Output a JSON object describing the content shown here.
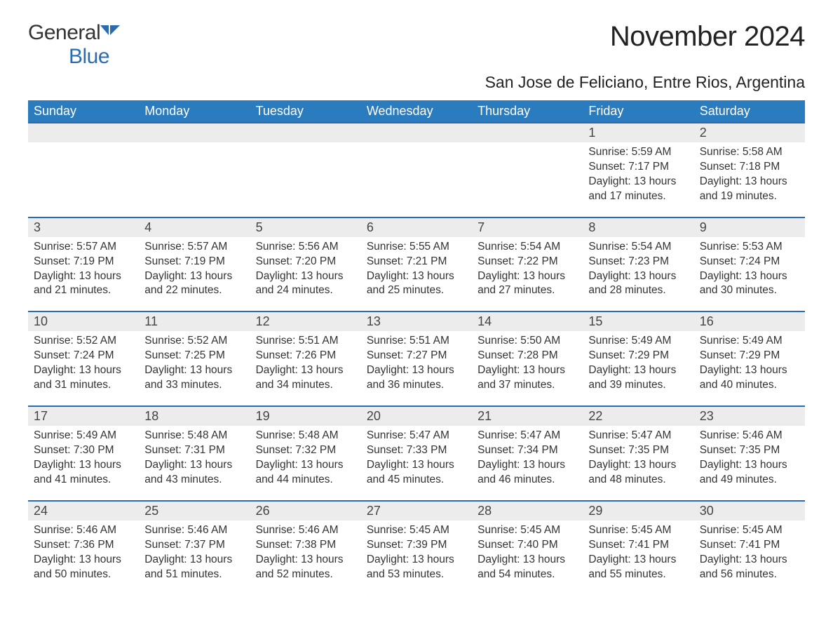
{
  "brand": {
    "word1": "General",
    "word2": "Blue",
    "accent_color": "#2b6cb0"
  },
  "title": "November 2024",
  "location": "San Jose de Feliciano, Entre Rios, Argentina",
  "header_bg": "#2b7bbf",
  "header_fg": "#ffffff",
  "daynum_bg": "#ececec",
  "rule_color": "#2b6cb0",
  "text_color": "#333333",
  "font_family": "Arial",
  "title_fontsize": 40,
  "location_fontsize": 23,
  "header_fontsize": 18,
  "daynum_fontsize": 18,
  "body_fontsize": 15.5,
  "weekdays": [
    "Sunday",
    "Monday",
    "Tuesday",
    "Wednesday",
    "Thursday",
    "Friday",
    "Saturday"
  ],
  "weeks": [
    [
      null,
      null,
      null,
      null,
      null,
      {
        "n": "1",
        "sunrise": "Sunrise: 5:59 AM",
        "sunset": "Sunset: 7:17 PM",
        "daylight": "Daylight: 13 hours and 17 minutes."
      },
      {
        "n": "2",
        "sunrise": "Sunrise: 5:58 AM",
        "sunset": "Sunset: 7:18 PM",
        "daylight": "Daylight: 13 hours and 19 minutes."
      }
    ],
    [
      {
        "n": "3",
        "sunrise": "Sunrise: 5:57 AM",
        "sunset": "Sunset: 7:19 PM",
        "daylight": "Daylight: 13 hours and 21 minutes."
      },
      {
        "n": "4",
        "sunrise": "Sunrise: 5:57 AM",
        "sunset": "Sunset: 7:19 PM",
        "daylight": "Daylight: 13 hours and 22 minutes."
      },
      {
        "n": "5",
        "sunrise": "Sunrise: 5:56 AM",
        "sunset": "Sunset: 7:20 PM",
        "daylight": "Daylight: 13 hours and 24 minutes."
      },
      {
        "n": "6",
        "sunrise": "Sunrise: 5:55 AM",
        "sunset": "Sunset: 7:21 PM",
        "daylight": "Daylight: 13 hours and 25 minutes."
      },
      {
        "n": "7",
        "sunrise": "Sunrise: 5:54 AM",
        "sunset": "Sunset: 7:22 PM",
        "daylight": "Daylight: 13 hours and 27 minutes."
      },
      {
        "n": "8",
        "sunrise": "Sunrise: 5:54 AM",
        "sunset": "Sunset: 7:23 PM",
        "daylight": "Daylight: 13 hours and 28 minutes."
      },
      {
        "n": "9",
        "sunrise": "Sunrise: 5:53 AM",
        "sunset": "Sunset: 7:24 PM",
        "daylight": "Daylight: 13 hours and 30 minutes."
      }
    ],
    [
      {
        "n": "10",
        "sunrise": "Sunrise: 5:52 AM",
        "sunset": "Sunset: 7:24 PM",
        "daylight": "Daylight: 13 hours and 31 minutes."
      },
      {
        "n": "11",
        "sunrise": "Sunrise: 5:52 AM",
        "sunset": "Sunset: 7:25 PM",
        "daylight": "Daylight: 13 hours and 33 minutes."
      },
      {
        "n": "12",
        "sunrise": "Sunrise: 5:51 AM",
        "sunset": "Sunset: 7:26 PM",
        "daylight": "Daylight: 13 hours and 34 minutes."
      },
      {
        "n": "13",
        "sunrise": "Sunrise: 5:51 AM",
        "sunset": "Sunset: 7:27 PM",
        "daylight": "Daylight: 13 hours and 36 minutes."
      },
      {
        "n": "14",
        "sunrise": "Sunrise: 5:50 AM",
        "sunset": "Sunset: 7:28 PM",
        "daylight": "Daylight: 13 hours and 37 minutes."
      },
      {
        "n": "15",
        "sunrise": "Sunrise: 5:49 AM",
        "sunset": "Sunset: 7:29 PM",
        "daylight": "Daylight: 13 hours and 39 minutes."
      },
      {
        "n": "16",
        "sunrise": "Sunrise: 5:49 AM",
        "sunset": "Sunset: 7:29 PM",
        "daylight": "Daylight: 13 hours and 40 minutes."
      }
    ],
    [
      {
        "n": "17",
        "sunrise": "Sunrise: 5:49 AM",
        "sunset": "Sunset: 7:30 PM",
        "daylight": "Daylight: 13 hours and 41 minutes."
      },
      {
        "n": "18",
        "sunrise": "Sunrise: 5:48 AM",
        "sunset": "Sunset: 7:31 PM",
        "daylight": "Daylight: 13 hours and 43 minutes."
      },
      {
        "n": "19",
        "sunrise": "Sunrise: 5:48 AM",
        "sunset": "Sunset: 7:32 PM",
        "daylight": "Daylight: 13 hours and 44 minutes."
      },
      {
        "n": "20",
        "sunrise": "Sunrise: 5:47 AM",
        "sunset": "Sunset: 7:33 PM",
        "daylight": "Daylight: 13 hours and 45 minutes."
      },
      {
        "n": "21",
        "sunrise": "Sunrise: 5:47 AM",
        "sunset": "Sunset: 7:34 PM",
        "daylight": "Daylight: 13 hours and 46 minutes."
      },
      {
        "n": "22",
        "sunrise": "Sunrise: 5:47 AM",
        "sunset": "Sunset: 7:35 PM",
        "daylight": "Daylight: 13 hours and 48 minutes."
      },
      {
        "n": "23",
        "sunrise": "Sunrise: 5:46 AM",
        "sunset": "Sunset: 7:35 PM",
        "daylight": "Daylight: 13 hours and 49 minutes."
      }
    ],
    [
      {
        "n": "24",
        "sunrise": "Sunrise: 5:46 AM",
        "sunset": "Sunset: 7:36 PM",
        "daylight": "Daylight: 13 hours and 50 minutes."
      },
      {
        "n": "25",
        "sunrise": "Sunrise: 5:46 AM",
        "sunset": "Sunset: 7:37 PM",
        "daylight": "Daylight: 13 hours and 51 minutes."
      },
      {
        "n": "26",
        "sunrise": "Sunrise: 5:46 AM",
        "sunset": "Sunset: 7:38 PM",
        "daylight": "Daylight: 13 hours and 52 minutes."
      },
      {
        "n": "27",
        "sunrise": "Sunrise: 5:45 AM",
        "sunset": "Sunset: 7:39 PM",
        "daylight": "Daylight: 13 hours and 53 minutes."
      },
      {
        "n": "28",
        "sunrise": "Sunrise: 5:45 AM",
        "sunset": "Sunset: 7:40 PM",
        "daylight": "Daylight: 13 hours and 54 minutes."
      },
      {
        "n": "29",
        "sunrise": "Sunrise: 5:45 AM",
        "sunset": "Sunset: 7:41 PM",
        "daylight": "Daylight: 13 hours and 55 minutes."
      },
      {
        "n": "30",
        "sunrise": "Sunrise: 5:45 AM",
        "sunset": "Sunset: 7:41 PM",
        "daylight": "Daylight: 13 hours and 56 minutes."
      }
    ]
  ]
}
